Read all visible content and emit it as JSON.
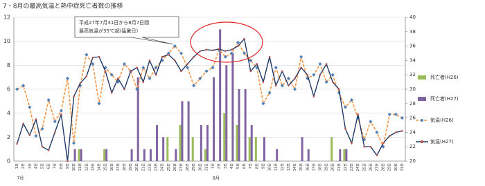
{
  "chart_data": {
    "type": "combo",
    "title": "7・8月の最高気温と熱中症死亡者数の推移",
    "annotation": [
      "平成27年7月31日から8月7日間",
      "最高気温が35℃超(猛暑日)"
    ],
    "categories": [
      "1日",
      "2日",
      "3日",
      "4日",
      "5日",
      "6日",
      "7日",
      "8日",
      "9日",
      "10日",
      "11日",
      "12日",
      "13日",
      "14日",
      "15日",
      "16日",
      "17日",
      "18日",
      "19日",
      "20日",
      "21日",
      "22日",
      "23日",
      "24日",
      "25日",
      "26日",
      "27日",
      "28日",
      "29日",
      "30日",
      "31日",
      "1日",
      "2日",
      "3日",
      "4日",
      "5日",
      "6日",
      "7日",
      "8日",
      "9日",
      "10日",
      "11日",
      "12日",
      "13日",
      "14日",
      "15日",
      "16日",
      "17日",
      "18日",
      "19日",
      "20日",
      "21日",
      "22日",
      "23日",
      "24日",
      "25日",
      "26日",
      "27日",
      "28日",
      "29日",
      "30日",
      "31日"
    ],
    "months": [
      "7月",
      "8月"
    ],
    "ylim": [
      0,
      12
    ],
    "yticks": [
      0,
      2,
      4,
      6,
      8,
      10,
      12
    ],
    "y2lim": [
      20,
      40
    ],
    "y2ticks": [
      20,
      22,
      24,
      26,
      28,
      30,
      32,
      34,
      36,
      38,
      40
    ],
    "grid": true,
    "legend": "right",
    "series": [
      {
        "name": "死亡者(H26)",
        "type": "bar",
        "color": "#9bbb59",
        "values": [
          0,
          0,
          0,
          0,
          0,
          0,
          0,
          0,
          0,
          0,
          1,
          0,
          0,
          0,
          1,
          0,
          0,
          0,
          0,
          0,
          0,
          0,
          0,
          0,
          2,
          0,
          3,
          0,
          2,
          0,
          1,
          0,
          0,
          4,
          0,
          3,
          0,
          2,
          2,
          0,
          0,
          0,
          0,
          0,
          0,
          0,
          0,
          0,
          0,
          0,
          2,
          0,
          1,
          0,
          0,
          0,
          0,
          0,
          0,
          0,
          0,
          0
        ]
      },
      {
        "name": "死亡者(H27)",
        "type": "bar",
        "color": "#8064a2",
        "values": [
          0,
          0,
          0,
          0,
          0,
          0,
          0,
          0,
          0,
          1,
          1,
          0,
          0,
          0,
          1,
          0,
          0,
          0,
          1,
          7,
          1,
          1,
          3,
          2,
          0,
          1,
          5,
          5,
          0,
          3,
          3,
          7,
          11,
          8,
          9,
          6,
          6,
          3,
          0,
          2,
          0,
          1,
          0,
          0,
          0,
          2,
          1,
          0,
          0,
          0,
          0,
          1,
          1,
          0,
          0,
          0,
          0,
          0,
          0,
          0,
          0,
          0
        ]
      },
      {
        "name": "気温(H26)",
        "type": "line",
        "axis": "y2",
        "color": "#f79646",
        "values": [
          30.0,
          30.5,
          27.5,
          23.5,
          24.5,
          28.5,
          25.5,
          27.0,
          31.5,
          22.5,
          30.5,
          34.8,
          33.5,
          28.0,
          33.0,
          32.0,
          31.0,
          33.5,
          32.5,
          30.0,
          33.0,
          31.5,
          33.0,
          34.0,
          35.0,
          36.0,
          35.0,
          33.0,
          30.5,
          31.5,
          32.5,
          33.0,
          35.5,
          34.5,
          35.0,
          36.5,
          35.0,
          34.0,
          33.0,
          28.0,
          29.5,
          33.0,
          30.5,
          31.5,
          30.0,
          34.5,
          31.5,
          32.0,
          33.5,
          31.0,
          32.0,
          29.5,
          27.5,
          28.5,
          26.0,
          23.0,
          25.5,
          24.0,
          22.0,
          26.5,
          26.5,
          26.0
        ]
      },
      {
        "name": "気温(H27)",
        "type": "line",
        "axis": "y2",
        "color": "#1f3864",
        "marker": "#c0504d",
        "values": [
          22.4,
          25.2,
          23.6,
          25.8,
          22.0,
          21.5,
          24.0,
          26.5,
          20.0,
          29.0,
          30.8,
          31.8,
          34.4,
          34.5,
          32.5,
          29.5,
          31.5,
          30.0,
          32.5,
          33.0,
          31.0,
          34.0,
          32.0,
          34.5,
          34.8,
          34.0,
          32.5,
          33.5,
          34.5,
          35.3,
          35.5,
          35.4,
          35.6,
          35.3,
          35.5,
          36.0,
          37.0,
          32.5,
          33.5,
          31.0,
          34.5,
          30.5,
          32.5,
          30.5,
          31.5,
          33.0,
          32.0,
          29.0,
          32.0,
          33.5,
          31.0,
          30.0,
          24.5,
          22.5,
          26.5,
          22.0,
          22.0,
          20.8,
          22.5,
          23.5,
          24.0,
          24.2
        ]
      }
    ]
  }
}
